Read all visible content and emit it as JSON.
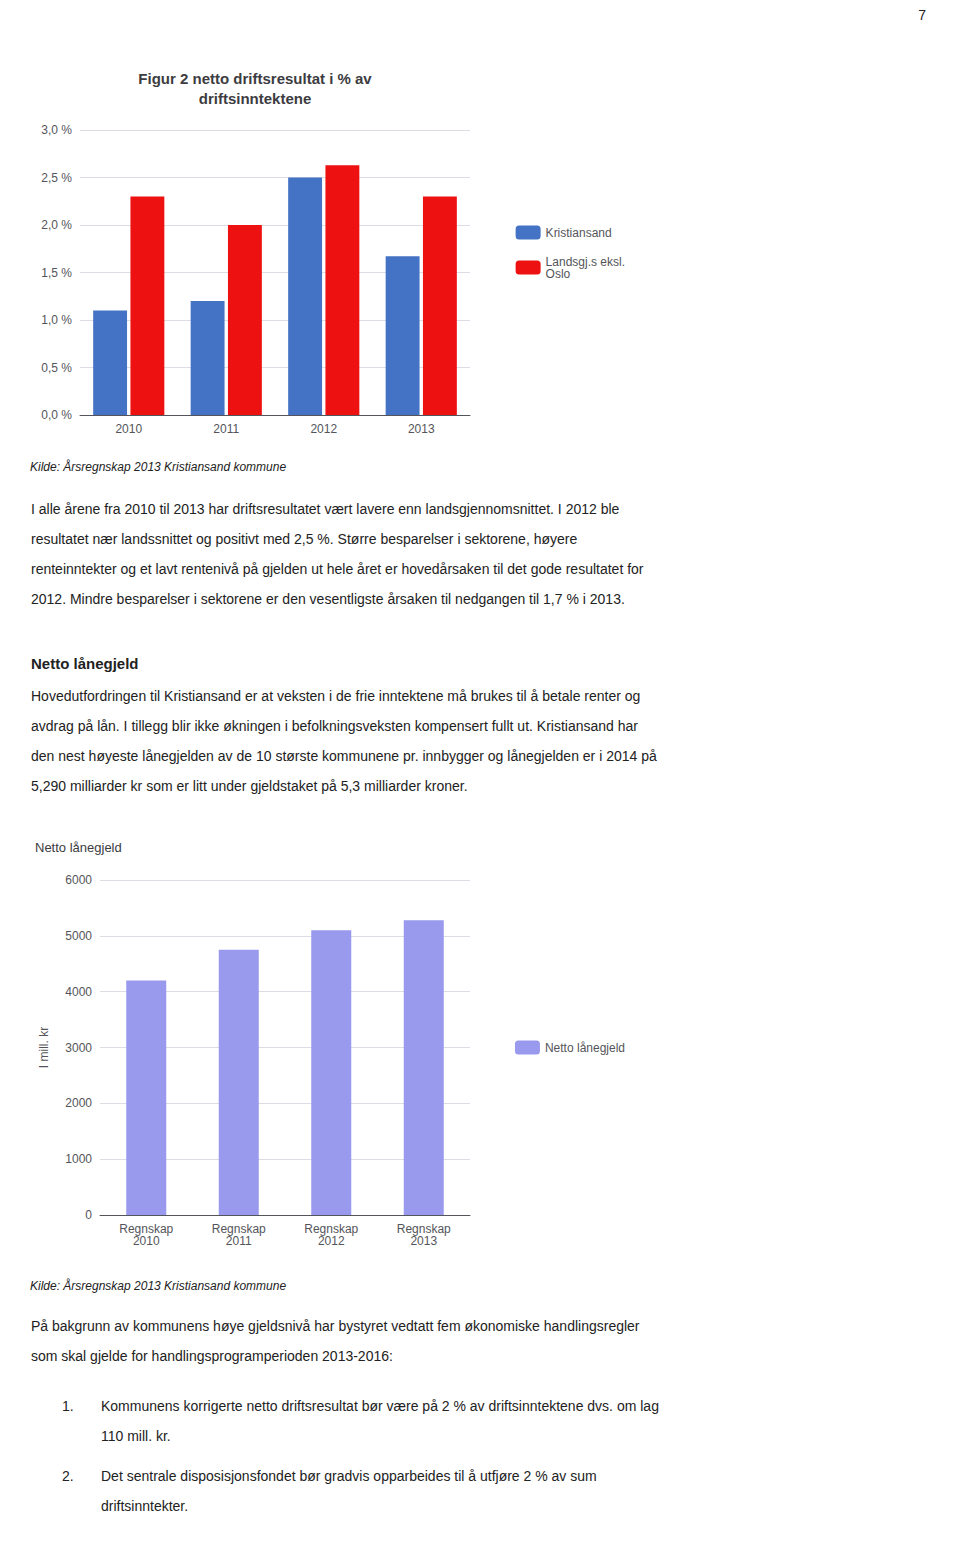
{
  "page_number": "7",
  "text_block1": [
    "I alle årene fra 2010 til 2013 har driftsresultatet vært lavere enn landsgjennomsnittet. I 2012 ble",
    "resultatet nær landssnittet og positivt med 2,5 %. Større besparelser i sektorene, høyere",
    "renteinntekter og et lavt rentenivå på gjelden ut hele året er hovedårsaken til det gode resultatet for",
    "2012. Mindre besparelser i sektorene er den vesentligste årsaken til nedgangen til 1,7 % i 2013."
  ],
  "heading2": "Netto lånegjeld",
  "text_block2": [
    "Hovedutfordringen til Kristiansand er at veksten i de frie inntektene må brukes til å betale renter og",
    "avdrag på lån. I tillegg blir ikke økningen i befolkningsveksten kompensert fullt ut. Kristiansand har",
    "den nest høyeste lånegjelden av de 10 største kommunene pr. innbygger og lånegjelden er i 2014 på",
    "5,290 milliarder kr som er litt under gjeldstaket på 5,3 milliarder kroner."
  ],
  "chart_data": [
    {
      "type": "bar",
      "title": "Figur 2 netto driftsresultat i % av\ndriftsinntektene",
      "categories": [
        "2010",
        "2011",
        "2012",
        "2013"
      ],
      "series": [
        {
          "name": "Kristiansand",
          "color": "#4472C4",
          "values": [
            1.1,
            1.2,
            2.5,
            1.67
          ]
        },
        {
          "name": "Landsgj.s eksl.\nOslo",
          "color": "#EE1111",
          "values": [
            2.3,
            2.0,
            2.63,
            2.3
          ]
        }
      ],
      "ylim": [
        0.0,
        3.0
      ],
      "yticks": [
        {
          "value": 0.0,
          "label": "0,0 %"
        },
        {
          "value": 0.5,
          "label": "0,5 %"
        },
        {
          "value": 1.0,
          "label": "1,0 %"
        },
        {
          "value": 1.5,
          "label": "1,5 %"
        },
        {
          "value": 2.0,
          "label": "2,0 %"
        },
        {
          "value": 2.5,
          "label": "2,5 %"
        },
        {
          "value": 3.0,
          "label": "3,0 %"
        }
      ],
      "grid": true,
      "legend": "right",
      "source": "Kilde: Årsregnskap 2013 Kristiansand kommune"
    },
    {
      "type": "bar",
      "title": "Netto lånegjeld",
      "categories": [
        "Regnskap\n2010",
        "Regnskap\n2011",
        "Regnskap\n2012",
        "Regnskap\n2013"
      ],
      "series": [
        {
          "name": "Netto lånegjeld",
          "color": "#9999EE",
          "values": [
            4200,
            4750,
            5100,
            5280
          ]
        }
      ],
      "ylabel": "I mill. kr",
      "ylim": [
        0,
        6000
      ],
      "yticks": [
        0,
        1000,
        2000,
        3000,
        4000,
        5000,
        6000
      ],
      "grid": true,
      "legend": "right",
      "source": "Kilde: Årsregnskap 2013 Kristiansand kommune"
    }
  ],
  "text_block3": [
    "På bakgrunn av kommunens høye gjeldsnivå har bystyret vedtatt fem økonomiske handlingsregler",
    "som skal gjelde for handlingsprogramperioden 2013-2016:"
  ],
  "list": [
    {
      "number": "1.",
      "lines": [
        "Kommunens korrigerte netto driftsresultat bør være på 2 % av driftsinntektene dvs. om lag",
        "110 mill. kr."
      ]
    },
    {
      "number": "2.",
      "lines": [
        "Det sentrale disposisjonsfondet bør gradvis opparbeides til å utfjøre 2 % av sum",
        "driftsinntekter."
      ]
    }
  ]
}
